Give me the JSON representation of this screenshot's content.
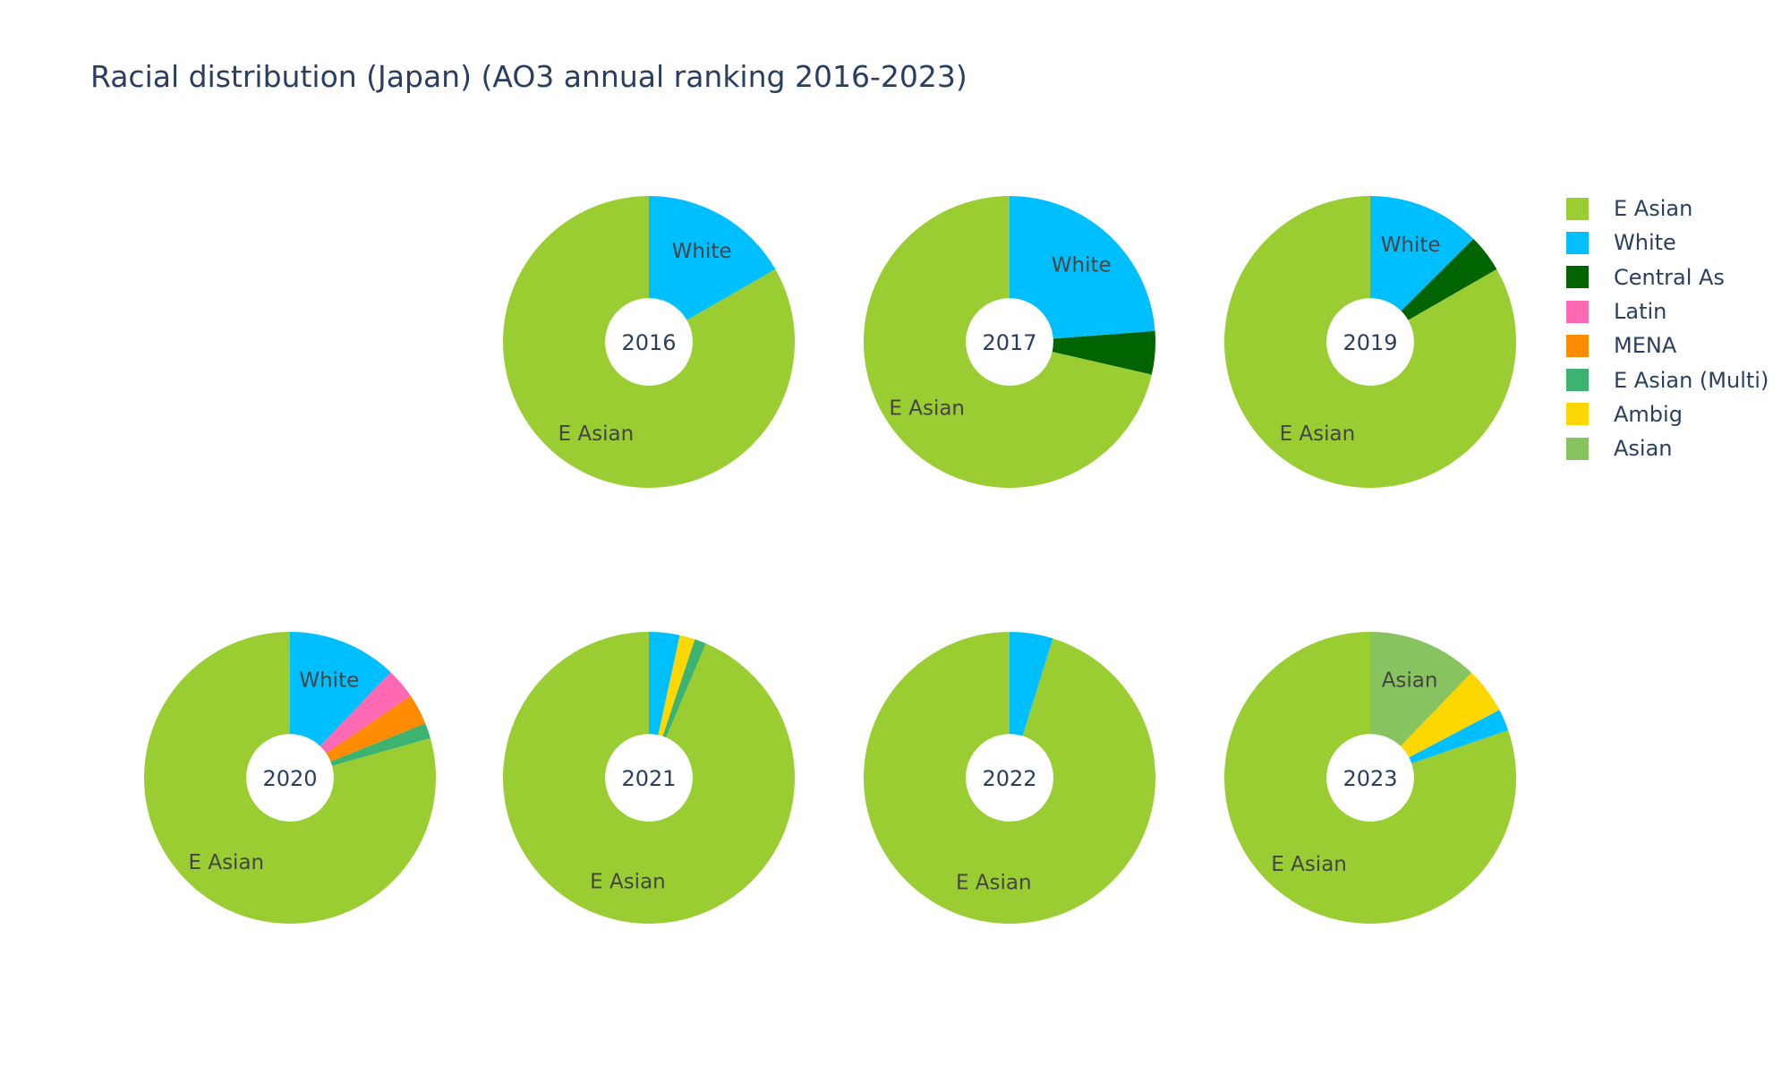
{
  "chart_data": {
    "type": "pie",
    "title": "Racial distribution (Japan) (AO3 annual ranking 2016-2023)",
    "hole": 0.3,
    "categories": [
      "E Asian",
      "White",
      "Central As",
      "Latin",
      "MENA",
      "E Asian (Multi)",
      "Ambig",
      "Asian"
    ],
    "colors": {
      "E Asian": "#9acd32",
      "White": "#00bfff",
      "Central As": "#006400",
      "Latin": "#ff69b4",
      "MENA": "#ff8c00",
      "E Asian (Multi)": "#3cb371",
      "Ambig": "#ffd700",
      "Asian": "#87c35f"
    },
    "legend_position": "top-right",
    "pies": [
      {
        "year": "2016",
        "slices": [
          {
            "label": "E Asian",
            "value": 83.3,
            "text": "E Asian"
          },
          {
            "label": "White",
            "value": 16.7,
            "text": "White"
          }
        ]
      },
      {
        "year": "2017",
        "slices": [
          {
            "label": "E Asian",
            "value": 71.4,
            "text": "E Asian"
          },
          {
            "label": "Central As",
            "value": 4.8,
            "text": ""
          },
          {
            "label": "White",
            "value": 23.8,
            "text": "White"
          }
        ]
      },
      {
        "year": "2019",
        "slices": [
          {
            "label": "E Asian",
            "value": 83.3,
            "text": "E Asian"
          },
          {
            "label": "Central As",
            "value": 4.2,
            "text": ""
          },
          {
            "label": "White",
            "value": 12.5,
            "text": "White"
          }
        ]
      },
      {
        "year": "2020",
        "slices": [
          {
            "label": "E Asian",
            "value": 79.3,
            "text": "E Asian"
          },
          {
            "label": "E Asian (Multi)",
            "value": 1.7,
            "text": ""
          },
          {
            "label": "MENA",
            "value": 3.4,
            "text": ""
          },
          {
            "label": "Latin",
            "value": 3.4,
            "text": ""
          },
          {
            "label": "White",
            "value": 12.1,
            "text": "White"
          }
        ]
      },
      {
        "year": "2021",
        "slices": [
          {
            "label": "E Asian",
            "value": 93.6,
            "text": "E Asian"
          },
          {
            "label": "E Asian (Multi)",
            "value": 1.3,
            "text": ""
          },
          {
            "label": "Ambig",
            "value": 1.7,
            "text": ""
          },
          {
            "label": "White",
            "value": 3.4,
            "text": ""
          }
        ]
      },
      {
        "year": "2022",
        "slices": [
          {
            "label": "E Asian",
            "value": 95.2,
            "text": "E Asian"
          },
          {
            "label": "White",
            "value": 4.8,
            "text": ""
          }
        ]
      },
      {
        "year": "2023",
        "slices": [
          {
            "label": "E Asian",
            "value": 80.3,
            "text": "E Asian"
          },
          {
            "label": "White",
            "value": 2.4,
            "text": ""
          },
          {
            "label": "Ambig",
            "value": 5.1,
            "text": ""
          },
          {
            "label": "Asian",
            "value": 12.2,
            "text": "Asian"
          }
        ]
      }
    ]
  }
}
